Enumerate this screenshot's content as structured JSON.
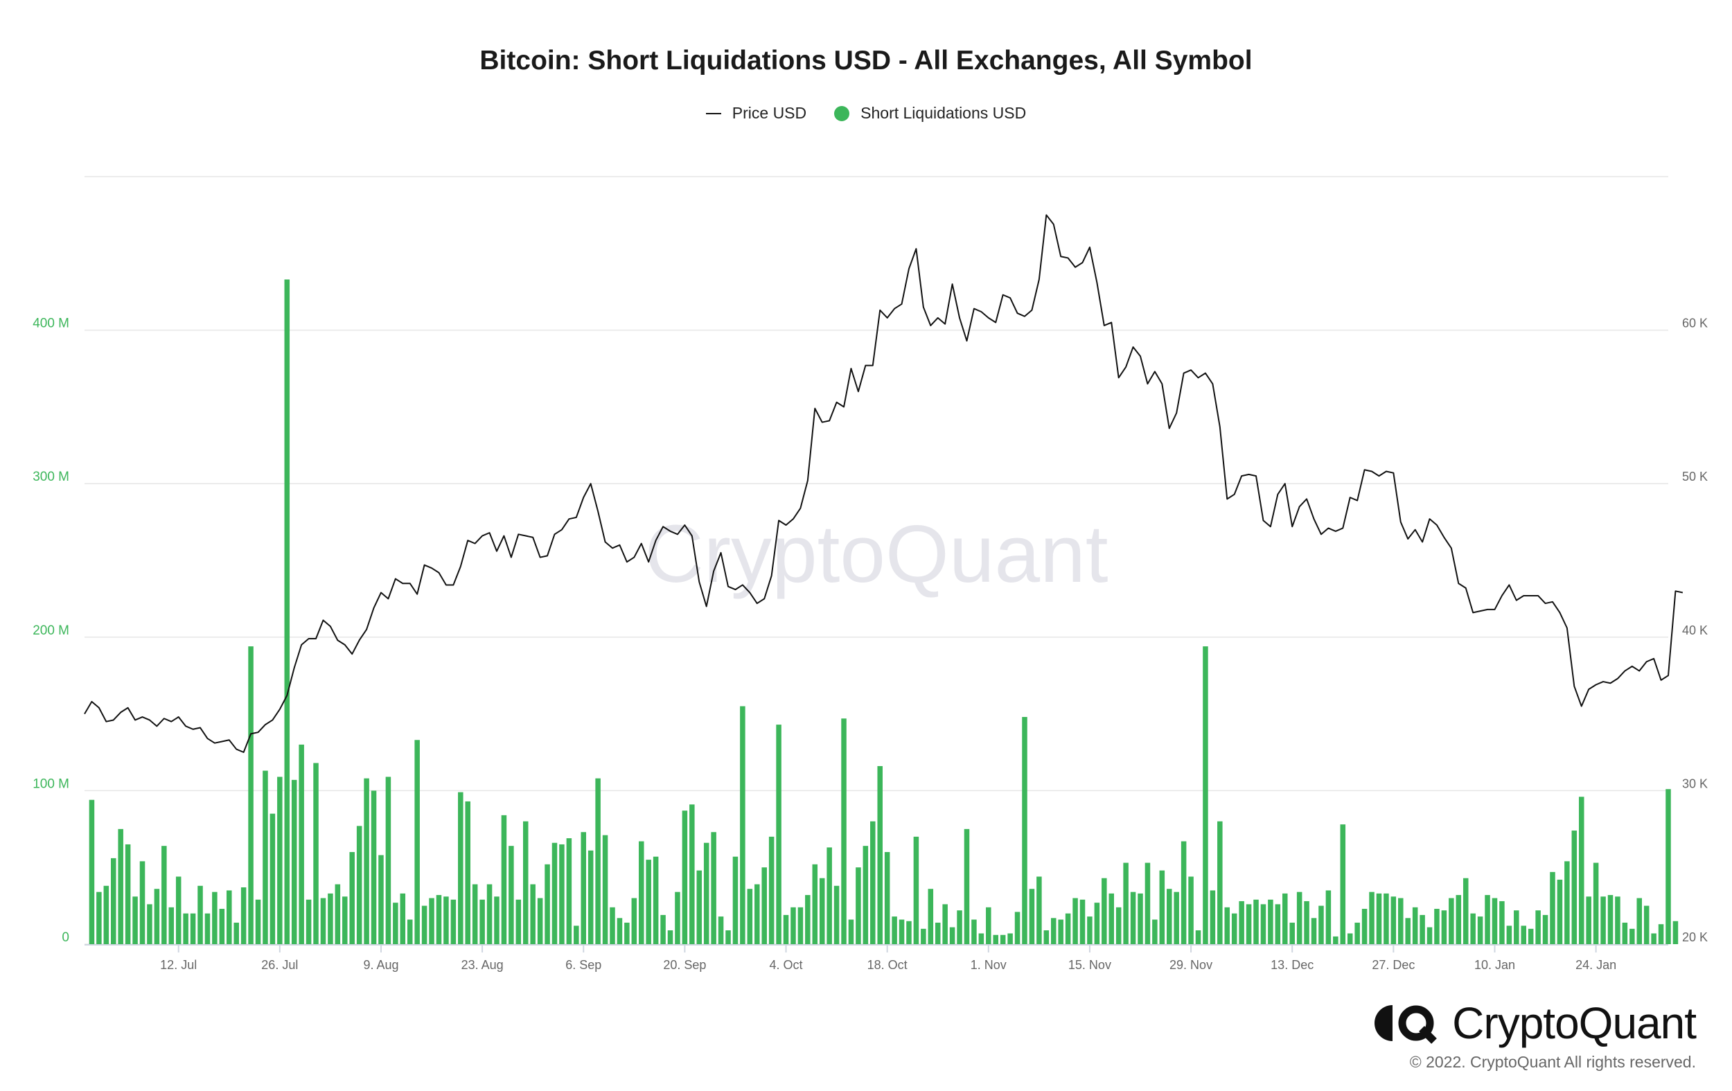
{
  "chart_data": {
    "type": "bar",
    "title": "Bitcoin: Short Liquidations USD - All Exchanges, All Symbol",
    "watermark": "CryptoQuant",
    "legend": [
      {
        "name": "Price USD",
        "marker": "line",
        "color": "#111111"
      },
      {
        "name": "Short Liquidations USD",
        "marker": "dot",
        "color": "#3cb65a"
      }
    ],
    "legend_position": "top-center",
    "grid": true,
    "x_range": [
      "2021-06-29",
      "2022-02-03"
    ],
    "x_ticks": [
      {
        "label": "12. Jul",
        "date": "2021-07-12"
      },
      {
        "label": "26. Jul",
        "date": "2021-07-26"
      },
      {
        "label": "9. Aug",
        "date": "2021-08-09"
      },
      {
        "label": "23. Aug",
        "date": "2021-08-23"
      },
      {
        "label": "6. Sep",
        "date": "2021-09-06"
      },
      {
        "label": "20. Sep",
        "date": "2021-09-20"
      },
      {
        "label": "4. Oct",
        "date": "2021-10-04"
      },
      {
        "label": "18. Oct",
        "date": "2021-10-18"
      },
      {
        "label": "1. Nov",
        "date": "2021-11-01"
      },
      {
        "label": "15. Nov",
        "date": "2021-11-15"
      },
      {
        "label": "29. Nov",
        "date": "2021-11-29"
      },
      {
        "label": "13. Dec",
        "date": "2021-12-13"
      },
      {
        "label": "27. Dec",
        "date": "2021-12-27"
      },
      {
        "label": "10. Jan",
        "date": "2022-01-10"
      },
      {
        "label": "24. Jan",
        "date": "2022-01-24"
      }
    ],
    "y_left": {
      "ylim": [
        0,
        500000000
      ],
      "ticks": [
        {
          "label": "0",
          "value": 0
        },
        {
          "label": "100 M",
          "value": 100000000
        },
        {
          "label": "200 M",
          "value": 200000000
        },
        {
          "label": "300 M",
          "value": 300000000
        },
        {
          "label": "400 M",
          "value": 400000000
        }
      ],
      "color": "#3cb65a"
    },
    "y_right": {
      "ylim": [
        20000,
        70000
      ],
      "ticks": [
        {
          "label": "20 K",
          "value": 20000
        },
        {
          "label": "30 K",
          "value": 30000
        },
        {
          "label": "40 K",
          "value": 40000
        },
        {
          "label": "50 K",
          "value": 50000
        },
        {
          "label": "60 K",
          "value": 60000
        }
      ],
      "color": "#666666"
    },
    "series": [
      {
        "name": "Short Liquidations USD",
        "type": "bar",
        "color": "#3cb65a",
        "start_date": "2021-06-30",
        "step_days": 1,
        "values_millions": [
          94,
          34,
          38,
          56,
          75,
          65,
          31,
          54,
          26,
          36,
          64,
          24,
          44,
          20,
          20,
          38,
          20,
          34,
          23,
          35,
          14,
          37,
          194,
          29,
          113,
          85,
          109,
          433,
          107,
          130,
          29,
          118,
          30,
          33,
          39,
          31,
          60,
          77,
          108,
          100,
          58,
          109,
          27,
          33,
          16,
          133,
          25,
          30,
          32,
          31,
          29,
          99,
          93,
          39,
          29,
          39,
          31,
          84,
          64,
          29,
          80,
          39,
          30,
          52,
          66,
          65,
          69,
          12,
          73,
          61,
          108,
          71,
          24,
          17,
          14,
          30,
          67,
          55,
          57,
          19,
          9,
          34,
          87,
          91,
          48,
          66,
          73,
          18,
          9,
          57,
          155,
          36,
          39,
          50,
          70,
          143,
          19,
          24,
          24,
          32,
          52,
          43,
          63,
          38,
          147,
          16,
          50,
          64,
          80,
          116,
          60,
          18,
          16,
          15,
          70,
          10,
          36,
          14,
          26,
          11,
          22,
          75,
          16,
          7,
          24,
          6,
          6,
          7,
          21,
          148,
          36,
          44,
          9,
          17,
          16,
          20,
          30,
          29,
          18,
          27,
          43,
          33,
          24,
          53,
          34,
          33,
          53,
          16,
          48,
          36,
          34,
          67,
          44,
          9,
          194,
          35,
          80,
          24,
          20,
          28,
          26,
          29,
          26,
          29,
          26,
          33,
          14,
          34,
          28,
          17,
          25,
          35,
          5,
          78,
          7,
          14,
          23,
          34,
          33,
          33,
          31,
          30,
          17,
          24,
          19,
          11,
          23,
          22,
          30,
          32,
          43,
          20,
          18,
          32,
          30,
          28,
          12,
          22,
          12,
          10,
          22,
          19,
          47,
          42,
          54,
          74,
          96,
          31,
          53,
          31,
          32,
          31,
          14,
          10,
          30,
          25,
          7,
          13,
          101,
          15
        ]
      },
      {
        "name": "Price USD",
        "type": "line",
        "color": "#111111",
        "start_date": "2021-06-29",
        "step_days": 1,
        "values": [
          35000,
          35800,
          35400,
          34500,
          34600,
          35100,
          35400,
          34600,
          34800,
          34600,
          34200,
          34700,
          34500,
          34800,
          34200,
          34000,
          34100,
          33400,
          33100,
          33200,
          33300,
          32700,
          32500,
          33700,
          33800,
          34300,
          34600,
          35300,
          36200,
          38000,
          39500,
          39900,
          39900,
          41100,
          40700,
          39800,
          39500,
          38900,
          39800,
          40500,
          41900,
          42900,
          42500,
          43800,
          43500,
          43500,
          42800,
          44700,
          44500,
          44200,
          43400,
          43400,
          44600,
          46300,
          46100,
          46600,
          46800,
          45600,
          46600,
          45200,
          46700,
          46600,
          46500,
          45200,
          45300,
          46700,
          47000,
          47700,
          47800,
          49100,
          50000,
          48200,
          46200,
          45800,
          46000,
          44900,
          45200,
          46100,
          44900,
          46300,
          47200,
          46900,
          46700,
          47300,
          46600,
          43600,
          42000,
          44300,
          45500,
          43300,
          43100,
          43400,
          42900,
          42200,
          42500,
          44000,
          47600,
          47300,
          47700,
          48400,
          50200,
          54900,
          54000,
          54100,
          55300,
          55000,
          57500,
          56000,
          57700,
          57700,
          61300,
          60800,
          61400,
          61700,
          64000,
          65300,
          61500,
          60300,
          60800,
          60400,
          63000,
          60800,
          59300,
          61400,
          61200,
          60800,
          60500,
          62300,
          62100,
          61100,
          60900,
          61300,
          63300,
          67500,
          66900,
          64800,
          64700,
          64100,
          64400,
          65400,
          63100,
          60300,
          60500,
          56900,
          57600,
          58900,
          58300,
          56500,
          57300,
          56500,
          53600,
          54600,
          57200,
          57400,
          56900,
          57200,
          56500,
          53700,
          49000,
          49300,
          50500,
          50600,
          50500,
          47600,
          47200,
          49300,
          50000,
          47200,
          48500,
          49000,
          47700,
          46700,
          47100,
          46900,
          47100,
          49100,
          48900,
          50900,
          50800,
          50500,
          50800,
          50700,
          47500,
          46400,
          47000,
          46200,
          47700,
          47300,
          46500,
          45800,
          43500,
          43200,
          41600,
          41700,
          41800,
          41800,
          42700,
          43400,
          42400,
          42700,
          42700,
          42700,
          42200,
          42300,
          41600,
          40600,
          36800,
          35500,
          36600,
          36900,
          37100,
          37000,
          37300,
          37800,
          38100,
          37800,
          38400,
          38600,
          37200,
          37500,
          43000,
          42900
        ]
      }
    ],
    "brand": "CryptoQuant",
    "copyright": "© 2022. CryptoQuant All rights reserved."
  }
}
